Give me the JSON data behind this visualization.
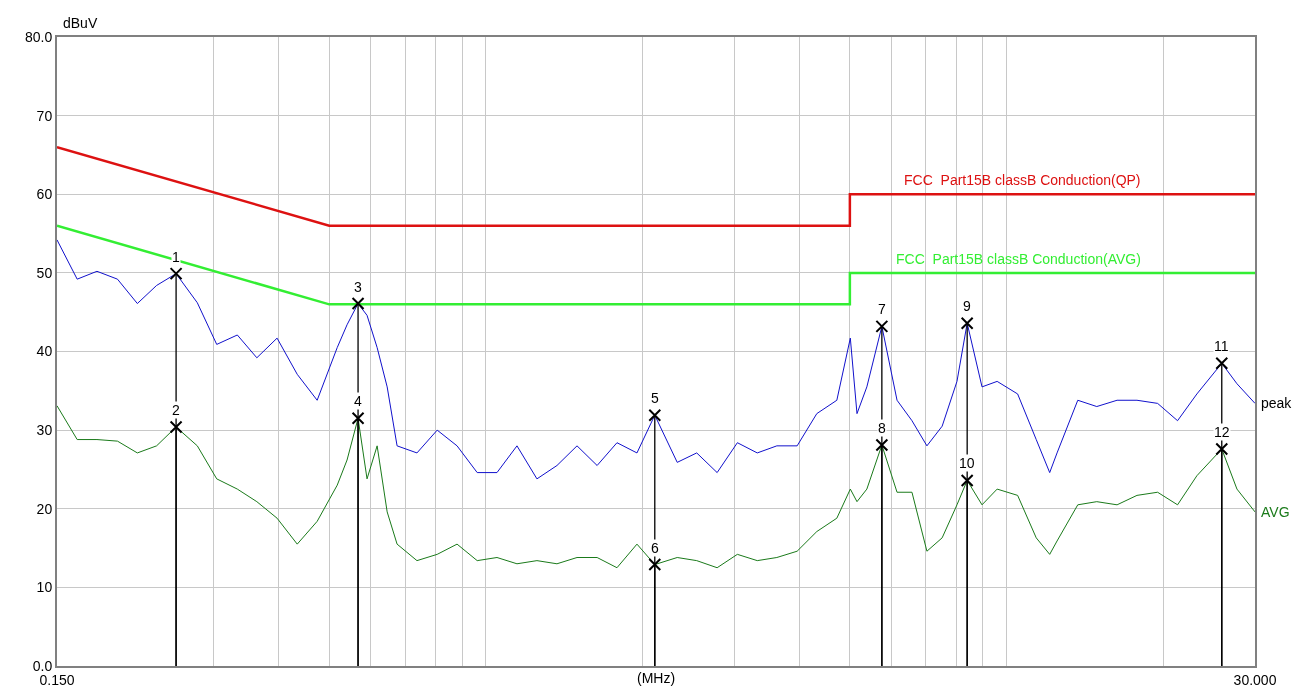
{
  "chart_data": {
    "type": "line",
    "xlabel": "(MHz)",
    "ylabel": "dBuV",
    "log": "x",
    "grid": true,
    "legend": false,
    "xlim": [
      0.15,
      30
    ],
    "ylim": [
      0,
      80
    ],
    "xticks": [
      {
        "value": 0.15,
        "label": "0.150"
      },
      {
        "value": 0.3,
        "label": null
      },
      {
        "value": 0.4,
        "label": null
      },
      {
        "value": 0.5,
        "label": null
      },
      {
        "value": 0.6,
        "label": null
      },
      {
        "value": 0.7,
        "label": null
      },
      {
        "value": 0.8,
        "label": null
      },
      {
        "value": 0.9,
        "label": null
      },
      {
        "value": 1,
        "label": null
      },
      {
        "value": 2,
        "label": null
      },
      {
        "value": 3,
        "label": null
      },
      {
        "value": 4,
        "label": null
      },
      {
        "value": 5,
        "label": null
      },
      {
        "value": 6,
        "label": null
      },
      {
        "value": 7,
        "label": null
      },
      {
        "value": 8,
        "label": null
      },
      {
        "value": 9,
        "label": null
      },
      {
        "value": 10,
        "label": null
      },
      {
        "value": 20,
        "label": null
      },
      {
        "value": 30,
        "label": "30.000"
      }
    ],
    "yticks": [
      {
        "value": 0,
        "label": "0.0"
      },
      10,
      20,
      30,
      40,
      50,
      60,
      70,
      {
        "value": 80,
        "label": "80.0"
      }
    ],
    "series": [
      {
        "name": "FCC  Part15B classB Conduction(QP)",
        "color": "#dd1111",
        "x": [
          0.15,
          0.5,
          5,
          5,
          30
        ],
        "values": [
          66,
          56,
          56,
          60,
          60
        ]
      },
      {
        "name": "FCC  Part15B classB Conduction(AVG)",
        "color": "#33ee33",
        "x": [
          0.15,
          0.5,
          5,
          5,
          30
        ],
        "values": [
          56,
          46,
          46,
          50,
          50
        ]
      },
      {
        "name": "peak",
        "color": "#1111cc",
        "x": [
          0.15,
          0.164,
          0.179,
          0.196,
          0.214,
          0.233,
          0.254,
          0.279,
          0.304,
          0.333,
          0.363,
          0.397,
          0.434,
          0.474,
          0.518,
          0.541,
          0.568,
          0.591,
          0.618,
          0.646,
          0.675,
          0.737,
          0.806,
          0.88,
          0.962,
          1.05,
          1.147,
          1.253,
          1.369,
          1.496,
          1.635,
          1.785,
          1.95,
          2.11,
          2.33,
          2.54,
          2.78,
          3.04,
          3.32,
          3.62,
          3.96,
          4.32,
          4.72,
          5.01,
          5.16,
          5.39,
          5.76,
          6.16,
          6.58,
          7.03,
          7.52,
          8.03,
          8.4,
          8.97,
          9.59,
          10.5,
          11.4,
          12.1,
          12.5,
          13.7,
          14.9,
          16.3,
          17.8,
          19.5,
          21.3,
          23.2,
          25.9,
          27.7,
          30
        ],
        "values": [
          54.2,
          49.2,
          50.2,
          49.2,
          46.1,
          48.4,
          49.9,
          46.2,
          40.9,
          42.1,
          39.2,
          41.7,
          37.1,
          33.8,
          40.5,
          43.4,
          46.1,
          44.6,
          40.5,
          35.5,
          28.0,
          27.1,
          30.0,
          28.0,
          24.6,
          24.6,
          28.0,
          23.8,
          25.5,
          28.0,
          25.5,
          28.4,
          27.1,
          31.9,
          25.9,
          27.1,
          24.6,
          28.4,
          27.1,
          28.0,
          28.0,
          32.1,
          33.8,
          41.7,
          32.1,
          35.5,
          43.2,
          33.8,
          31.2,
          28.0,
          30.5,
          36.2,
          43.6,
          35.5,
          36.2,
          34.6,
          28.8,
          24.6,
          27.1,
          33.8,
          33.0,
          33.8,
          33.8,
          33.4,
          31.2,
          34.6,
          38.5,
          35.9,
          33.4
        ]
      },
      {
        "name": "AVG",
        "color": "#1a7a1a",
        "x": [
          0.15,
          0.164,
          0.179,
          0.196,
          0.214,
          0.233,
          0.254,
          0.279,
          0.304,
          0.333,
          0.363,
          0.397,
          0.434,
          0.474,
          0.518,
          0.541,
          0.568,
          0.591,
          0.618,
          0.646,
          0.675,
          0.737,
          0.806,
          0.88,
          0.962,
          1.05,
          1.147,
          1.253,
          1.369,
          1.496,
          1.635,
          1.785,
          1.95,
          2.11,
          2.33,
          2.54,
          2.78,
          3.04,
          3.32,
          3.62,
          3.96,
          4.32,
          4.72,
          5.01,
          5.16,
          5.39,
          5.76,
          6.16,
          6.58,
          7.03,
          7.52,
          8.03,
          8.4,
          8.97,
          9.59,
          10.5,
          11.4,
          12.1,
          12.5,
          13.7,
          14.9,
          16.3,
          17.8,
          19.5,
          21.3,
          23.2,
          25.9,
          27.7,
          30
        ],
        "values": [
          33.1,
          28.8,
          28.8,
          28.6,
          27.1,
          28.0,
          30.4,
          28.0,
          23.8,
          22.5,
          20.9,
          18.8,
          15.5,
          18.4,
          23.0,
          26.2,
          31.5,
          23.8,
          28.0,
          19.6,
          15.5,
          13.4,
          14.2,
          15.5,
          13.4,
          13.8,
          13.0,
          13.4,
          13.0,
          13.8,
          13.8,
          12.5,
          15.5,
          12.9,
          13.8,
          13.4,
          12.5,
          14.2,
          13.4,
          13.8,
          14.6,
          17.1,
          18.8,
          22.5,
          20.9,
          22.5,
          28.1,
          22.1,
          22.1,
          14.6,
          16.3,
          20.5,
          23.6,
          20.5,
          22.5,
          21.7,
          16.3,
          14.2,
          15.9,
          20.5,
          20.9,
          20.5,
          21.7,
          22.1,
          20.5,
          24.2,
          27.6,
          22.5,
          19.6
        ]
      },
      {
        "type": "lollipop",
        "marker": "cross",
        "color": "#000000",
        "x": [
          0.254,
          0.254,
          0.568,
          0.568,
          2.11,
          2.11,
          5.76,
          5.76,
          8.4,
          8.4,
          25.9,
          25.9
        ],
        "values": [
          49.9,
          30.4,
          46.1,
          31.5,
          31.9,
          12.9,
          43.2,
          28.1,
          43.6,
          23.6,
          38.5,
          27.6
        ]
      }
    ],
    "annotations": [
      {
        "text": "1",
        "x": 0.254,
        "y": 49.9
      },
      {
        "text": "2",
        "x": 0.254,
        "y": 30.4
      },
      {
        "text": "3",
        "x": 0.568,
        "y": 46.1
      },
      {
        "text": "4",
        "x": 0.568,
        "y": 31.5
      },
      {
        "text": "5",
        "x": 2.11,
        "y": 31.9
      },
      {
        "text": "6",
        "x": 2.11,
        "y": 12.9
      },
      {
        "text": "7",
        "x": 5.76,
        "y": 43.2
      },
      {
        "text": "8",
        "x": 5.76,
        "y": 28.1
      },
      {
        "text": "9",
        "x": 8.4,
        "y": 43.6
      },
      {
        "text": "10",
        "x": 8.4,
        "y": 23.6
      },
      {
        "text": "11",
        "x": 25.9,
        "y": 38.5
      },
      {
        "text": "12",
        "x": 25.9,
        "y": 27.6
      }
    ]
  }
}
